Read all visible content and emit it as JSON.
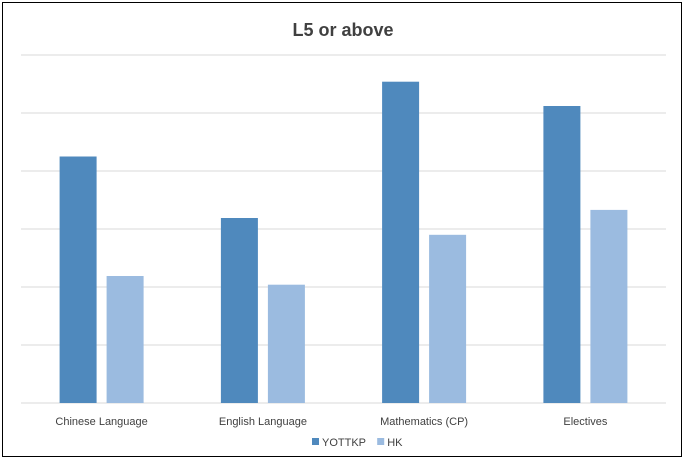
{
  "chart_data": {
    "type": "bar",
    "title": "L5 or above",
    "xlabel": "",
    "ylabel": "",
    "categories": [
      "Chinese Language",
      "English Language",
      "Mathematics (CP)",
      "Electives"
    ],
    "series": [
      {
        "name": "YOTTKP",
        "color": "#4f89bd",
        "values": [
          42.5,
          31.9,
          55.4,
          51.2
        ]
      },
      {
        "name": "HK",
        "color": "#9bbbe0",
        "values": [
          21.9,
          20.4,
          29.0,
          33.3
        ]
      }
    ],
    "ylim": [
      0,
      60
    ],
    "y_gridlines": [
      10,
      20,
      30,
      40,
      50,
      60
    ],
    "y_tick_labels_shown": false,
    "grid": true,
    "legend_position": "bottom"
  }
}
